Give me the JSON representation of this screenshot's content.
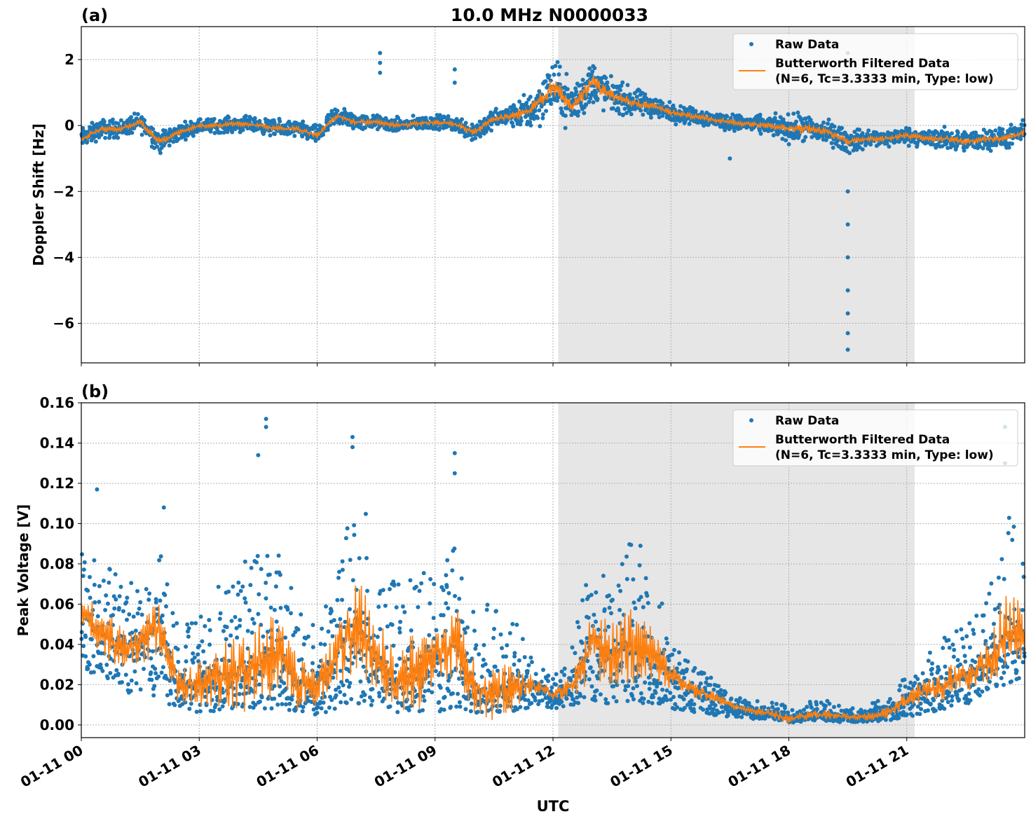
{
  "title": "10.0 MHz N0000033",
  "xlabel": "UTC",
  "shade_color": "#e6e6e6",
  "raw_color": "#1f77b4",
  "filtered_color": "#ff7f0e",
  "chart_data": [
    {
      "type": "scatter",
      "panel_label": "(a)",
      "ylabel": "Doppler Shift [Hz]",
      "ylim": [
        -7.2,
        3.0
      ],
      "yticks": [
        2,
        0,
        -2,
        -4,
        -6
      ],
      "ytick_labels": [
        "2",
        "0",
        "−2",
        "−4",
        "−6"
      ],
      "xlim": [
        "01-11 00:00",
        "01-12 00:00"
      ],
      "xtick_labels": [
        "01-11 00",
        "01-11 03",
        "01-11 06",
        "01-11 09",
        "01-11 12",
        "01-11 15",
        "01-11 18",
        "01-11 21"
      ],
      "grid": true,
      "legend_position": "top-right",
      "shaded_region": [
        "01-11 12:08",
        "01-11 21:12"
      ],
      "x": [
        "00:00",
        "00:30",
        "01:00",
        "01:30",
        "02:00",
        "02:30",
        "03:00",
        "03:30",
        "04:00",
        "04:30",
        "05:00",
        "05:30",
        "06:00",
        "06:30",
        "07:00",
        "07:30",
        "08:00",
        "08:30",
        "09:00",
        "09:30",
        "10:00",
        "10:30",
        "11:00",
        "11:30",
        "12:00",
        "12:30",
        "13:00",
        "13:30",
        "14:00",
        "14:30",
        "15:00",
        "15:30",
        "16:00",
        "16:30",
        "17:00",
        "17:30",
        "18:00",
        "18:30",
        "19:00",
        "19:30",
        "20:00",
        "20:30",
        "21:00",
        "21:30",
        "22:00",
        "22:30",
        "23:00",
        "23:30",
        "24:00"
      ],
      "series": [
        {
          "name": "Butterworth Filtered Data",
          "name2": "(N=6, Tc=3.3333 min, Type: low)",
          "kind": "line",
          "values": [
            -0.4,
            -0.1,
            -0.1,
            0.1,
            -0.5,
            -0.2,
            0.0,
            0.0,
            0.05,
            0.0,
            -0.1,
            -0.1,
            -0.3,
            0.3,
            0.1,
            0.1,
            0.0,
            0.05,
            0.1,
            0.05,
            -0.2,
            0.2,
            0.3,
            0.5,
            1.2,
            0.6,
            1.3,
            0.9,
            0.7,
            0.6,
            0.4,
            0.3,
            0.2,
            0.1,
            0.05,
            0.0,
            -0.1,
            -0.1,
            -0.2,
            -0.5,
            -0.4,
            -0.4,
            -0.3,
            -0.4,
            -0.4,
            -0.5,
            -0.4,
            -0.4,
            -0.2
          ]
        },
        {
          "name": "Raw Data",
          "kind": "points",
          "spread": [
            0.45,
            0.4,
            0.4,
            0.4,
            0.5,
            0.35,
            0.3,
            0.3,
            0.35,
            0.3,
            0.35,
            0.35,
            0.4,
            0.45,
            0.35,
            0.3,
            0.3,
            0.3,
            0.3,
            0.3,
            0.5,
            0.4,
            0.5,
            0.9,
            1.1,
            1.0,
            1.0,
            0.7,
            0.6,
            0.5,
            0.4,
            0.35,
            0.35,
            0.35,
            0.35,
            0.4,
            0.6,
            0.6,
            0.5,
            0.5,
            0.4,
            0.35,
            0.35,
            0.4,
            0.45,
            0.45,
            0.45,
            0.45,
            0.45
          ],
          "outliers": [
            [
              "07:36",
              2.2
            ],
            [
              "07:36",
              1.9
            ],
            [
              "07:36",
              1.6
            ],
            [
              "09:30",
              1.7
            ],
            [
              "09:30",
              1.3
            ],
            [
              "16:30",
              -1.0
            ],
            [
              "19:30",
              -2.0
            ],
            [
              "19:30",
              -3.0
            ],
            [
              "19:30",
              -4.0
            ],
            [
              "19:30",
              -5.0
            ],
            [
              "19:30",
              -5.7
            ],
            [
              "19:30",
              -6.3
            ],
            [
              "19:30",
              -6.8
            ],
            [
              "19:30",
              2.2
            ]
          ]
        }
      ]
    },
    {
      "type": "scatter",
      "panel_label": "(b)",
      "ylabel": "Peak Voltage [V]",
      "ylim": [
        -0.0063,
        0.16
      ],
      "yticks": [
        0.0,
        0.02,
        0.04,
        0.06,
        0.08,
        0.1,
        0.12,
        0.14,
        0.16
      ],
      "ytick_labels": [
        "0.00",
        "0.02",
        "0.04",
        "0.06",
        "0.08",
        "0.10",
        "0.12",
        "0.14",
        "0.16"
      ],
      "xlim": [
        "01-11 00:00",
        "01-12 00:00"
      ],
      "grid": true,
      "legend_position": "top-right",
      "shaded_region": [
        "01-11 12:08",
        "01-11 21:12"
      ],
      "x": [
        "00:00",
        "00:30",
        "01:00",
        "01:30",
        "02:00",
        "02:30",
        "03:00",
        "03:30",
        "04:00",
        "04:30",
        "05:00",
        "05:30",
        "06:00",
        "06:30",
        "07:00",
        "07:30",
        "08:00",
        "08:30",
        "09:00",
        "09:30",
        "10:00",
        "10:30",
        "11:00",
        "11:30",
        "12:00",
        "12:30",
        "13:00",
        "13:30",
        "14:00",
        "14:30",
        "15:00",
        "15:30",
        "16:00",
        "16:30",
        "17:00",
        "17:30",
        "18:00",
        "18:30",
        "19:00",
        "19:30",
        "20:00",
        "20:30",
        "21:00",
        "21:30",
        "22:00",
        "22:30",
        "23:00",
        "23:30",
        "24:00"
      ],
      "series": [
        {
          "name": "Butterworth Filtered Data",
          "name2": "(N=6, Tc=3.3333 min, Type: low)",
          "kind": "line",
          "values": [
            0.055,
            0.045,
            0.04,
            0.04,
            0.05,
            0.02,
            0.02,
            0.025,
            0.025,
            0.03,
            0.035,
            0.02,
            0.02,
            0.035,
            0.05,
            0.035,
            0.02,
            0.025,
            0.035,
            0.04,
            0.02,
            0.015,
            0.02,
            0.02,
            0.015,
            0.02,
            0.04,
            0.035,
            0.04,
            0.035,
            0.025,
            0.018,
            0.015,
            0.01,
            0.007,
            0.006,
            0.003,
            0.005,
            0.005,
            0.004,
            0.004,
            0.006,
            0.012,
            0.017,
            0.02,
            0.025,
            0.03,
            0.045,
            0.045
          ]
        },
        {
          "name": "Raw Data",
          "kind": "points",
          "high": [
            0.09,
            0.08,
            0.075,
            0.07,
            0.09,
            0.05,
            0.055,
            0.07,
            0.08,
            0.1,
            0.09,
            0.06,
            0.05,
            0.08,
            0.12,
            0.09,
            0.07,
            0.09,
            0.07,
            0.1,
            0.06,
            0.06,
            0.06,
            0.03,
            0.025,
            0.04,
            0.09,
            0.08,
            0.1,
            0.08,
            0.045,
            0.03,
            0.025,
            0.015,
            0.012,
            0.012,
            0.01,
            0.012,
            0.012,
            0.008,
            0.01,
            0.014,
            0.025,
            0.035,
            0.045,
            0.05,
            0.06,
            0.11,
            0.09
          ],
          "low": [
            0.025,
            0.02,
            0.015,
            0.015,
            0.012,
            0.008,
            0.006,
            0.007,
            0.008,
            0.008,
            0.008,
            0.006,
            0.005,
            0.008,
            0.01,
            0.008,
            0.006,
            0.007,
            0.006,
            0.008,
            0.006,
            0.006,
            0.007,
            0.009,
            0.008,
            0.009,
            0.012,
            0.01,
            0.012,
            0.01,
            0.008,
            0.006,
            0.005,
            0.004,
            0.003,
            0.003,
            0.001,
            0.002,
            0.002,
            0.001,
            0.001,
            0.002,
            0.004,
            0.006,
            0.008,
            0.01,
            0.015,
            0.02,
            0.02
          ],
          "outliers": [
            [
              "04:42",
              0.152
            ],
            [
              "04:42",
              0.148
            ],
            [
              "04:30",
              0.134
            ],
            [
              "06:54",
              0.143
            ],
            [
              "06:54",
              0.138
            ],
            [
              "09:30",
              0.135
            ],
            [
              "09:30",
              0.125
            ],
            [
              "23:30",
              0.148
            ],
            [
              "23:30",
              0.13
            ],
            [
              "02:06",
              0.108
            ],
            [
              "00:24",
              0.117
            ]
          ]
        }
      ]
    }
  ]
}
